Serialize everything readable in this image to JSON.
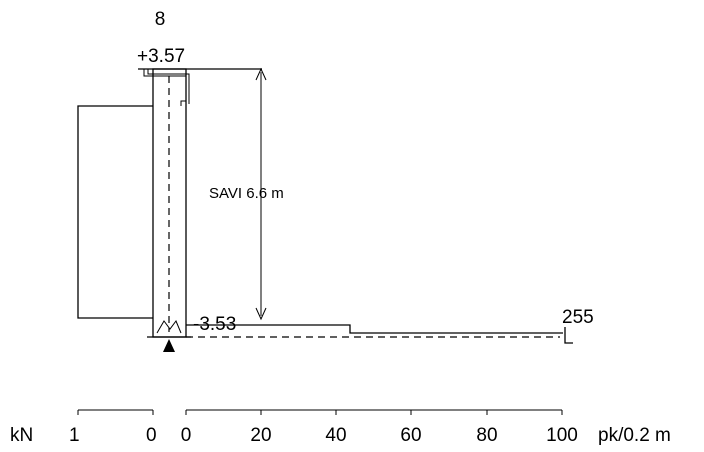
{
  "sounding": {
    "id": "8",
    "top_level": "+3.57",
    "bottom_level": "-3.53",
    "method_depth_label": "SAVI 6.6 m",
    "max_resistance_label": "255"
  },
  "force_axis": {
    "unit": "kN",
    "ticks": [
      "1",
      "0"
    ]
  },
  "rate_axis": {
    "unit": "pk/0.2 m",
    "ticks": [
      "0",
      "20",
      "40",
      "60",
      "80",
      "100"
    ]
  }
}
